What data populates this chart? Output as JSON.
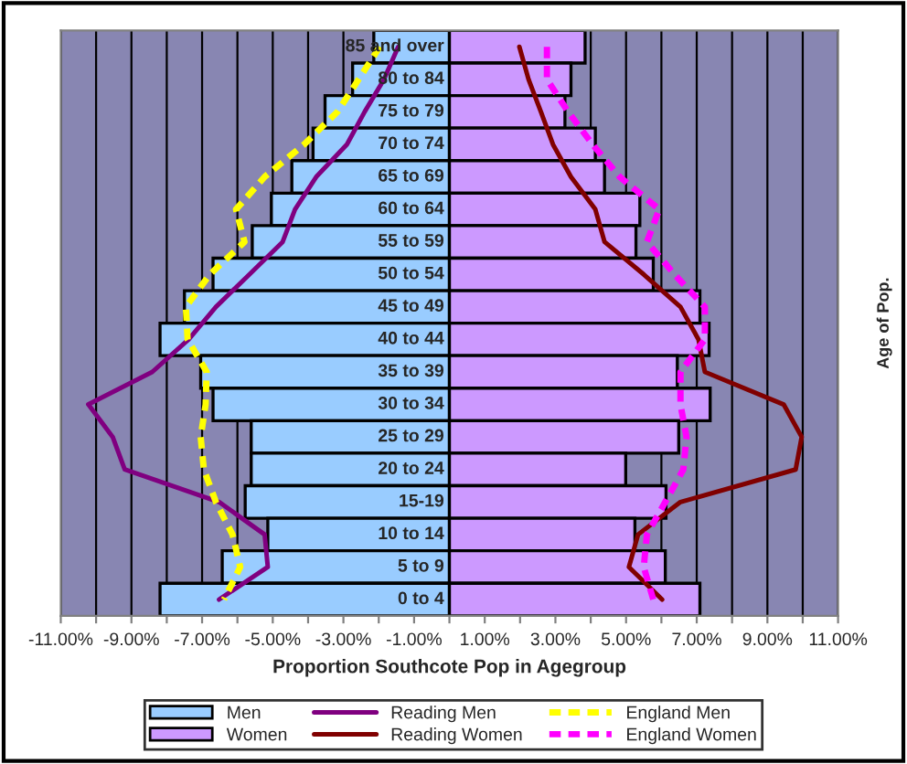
{
  "chart_data": {
    "type": "bar",
    "orientation": "horizontal",
    "xlabel": "Proportion Southcote Pop in Agegroup",
    "ylabel": "Age of Pop.",
    "categories": [
      "85 and over",
      "80 to 84",
      "75 to 79",
      "70 to 74",
      "65 to 69",
      "60 to 64",
      "55 to 59",
      "50 to 54",
      "45 to 49",
      "40 to 44",
      "35 to 39",
      "30 to 34",
      "25 to 29",
      "20 to 24",
      "15-19",
      "10 to 14",
      "5 to 9",
      "0 to 4"
    ],
    "series": [
      {
        "name": "Men",
        "color": "#99ccff",
        "values": [
          -2.14,
          -2.74,
          -3.52,
          -3.86,
          -4.46,
          -5.04,
          -5.58,
          -6.69,
          -7.5,
          -8.19,
          -7.04,
          -6.69,
          -5.61,
          -5.61,
          -5.78,
          -5.14,
          -6.43,
          -8.19
        ]
      },
      {
        "name": "Women",
        "color": "#cc99ff",
        "values": [
          3.84,
          3.44,
          3.27,
          4.13,
          4.39,
          5.39,
          5.28,
          5.77,
          7.09,
          7.35,
          6.45,
          7.38,
          6.49,
          4.99,
          6.13,
          5.25,
          6.11,
          7.09
        ]
      },
      {
        "name": "Reading Men",
        "type": "line",
        "line_style": "solid",
        "color": "#800080",
        "values": [
          -1.45,
          -1.85,
          -2.4,
          -2.9,
          -3.77,
          -4.37,
          -4.72,
          -5.66,
          -6.61,
          -7.38,
          -8.41,
          -10.22,
          -9.53,
          -9.19,
          -6.52,
          -5.23,
          -5.14,
          -6.52
        ]
      },
      {
        "name": "Reading Women",
        "type": "line",
        "line_style": "solid",
        "color": "#800000",
        "values": [
          1.98,
          2.24,
          2.59,
          2.93,
          3.44,
          4.13,
          4.39,
          5.5,
          6.54,
          7.05,
          7.23,
          9.46,
          9.97,
          9.8,
          6.54,
          5.34,
          5.08,
          6.02
        ]
      },
      {
        "name": "England Men",
        "type": "line",
        "line_style": "dashed",
        "color": "#ffff00",
        "values": [
          -1.97,
          -2.57,
          -3.17,
          -4.11,
          -5.23,
          -6.04,
          -5.8,
          -6.78,
          -7.46,
          -7.41,
          -6.87,
          -6.9,
          -7.04,
          -6.95,
          -6.61,
          -6.14,
          -5.92,
          -6.38
        ]
      },
      {
        "name": "England Women",
        "type": "line",
        "line_style": "dashed",
        "color": "#ff00ff",
        "values": [
          2.76,
          2.76,
          3.36,
          4.05,
          4.82,
          5.94,
          5.59,
          6.37,
          7.23,
          7.23,
          6.54,
          6.54,
          6.71,
          6.62,
          6.11,
          5.59,
          5.5,
          5.77
        ]
      }
    ],
    "xlim": [
      -11,
      11
    ],
    "xticks": [
      {
        "value": -11,
        "label": "-11.00%"
      },
      {
        "value": -10,
        "label": null
      },
      {
        "value": -9,
        "label": "-9.00%"
      },
      {
        "value": -8,
        "label": null
      },
      {
        "value": -7,
        "label": "-7.00%"
      },
      {
        "value": -6,
        "label": null
      },
      {
        "value": -5,
        "label": "-5.00%"
      },
      {
        "value": -4,
        "label": null
      },
      {
        "value": -3,
        "label": "-3.00%"
      },
      {
        "value": -2,
        "label": null
      },
      {
        "value": -1,
        "label": "-1.00%"
      },
      {
        "value": 0,
        "label": null
      },
      {
        "value": 1,
        "label": "1.00%"
      },
      {
        "value": 2,
        "label": null
      },
      {
        "value": 3,
        "label": "3.00%"
      },
      {
        "value": 4,
        "label": null
      },
      {
        "value": 5,
        "label": "5.00%"
      },
      {
        "value": 6,
        "label": null
      },
      {
        "value": 7,
        "label": "7.00%"
      },
      {
        "value": 8,
        "label": null
      },
      {
        "value": 9,
        "label": "9.00%"
      },
      {
        "value": 10,
        "label": null
      },
      {
        "value": 11,
        "label": "11.00%"
      }
    ],
    "grid": "x",
    "legend": "bottom",
    "stacked": true
  }
}
